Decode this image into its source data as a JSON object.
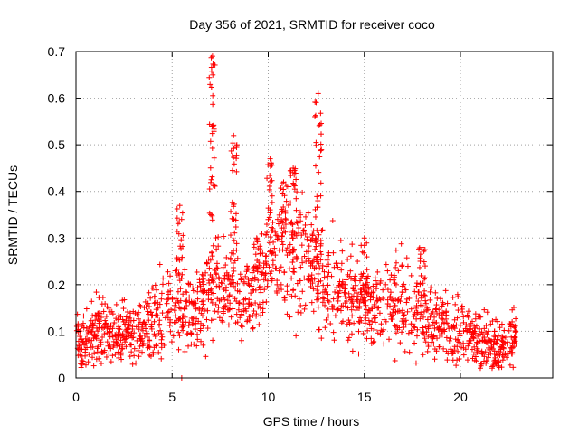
{
  "chart_data": {
    "type": "scatter",
    "title": "Day 356 of 2021, SRMTID for receiver coco",
    "xlabel": "GPS time / hours",
    "ylabel": "SRMTID / TECUs",
    "xlim": [
      0,
      24.8
    ],
    "ylim": [
      0,
      0.7
    ],
    "xticks": [
      0,
      5,
      10,
      15,
      20
    ],
    "yticks": [
      0,
      0.1,
      0.2,
      0.3,
      0.4,
      0.5,
      0.6,
      0.7
    ],
    "xtick_labels": [
      "0",
      "5",
      "10",
      "15",
      "20"
    ],
    "ytick_labels": [
      "0",
      "0.1",
      "0.2",
      "0.3",
      "0.4",
      "0.5",
      "0.6",
      "0.7"
    ],
    "grid": true,
    "marker": "+",
    "color": "#ff0000",
    "x_range_of_data": [
      0,
      22.9
    ],
    "trend": [
      [
        0,
        0.08
      ],
      [
        1,
        0.1
      ],
      [
        2,
        0.09
      ],
      [
        3,
        0.1
      ],
      [
        4,
        0.12
      ],
      [
        5,
        0.16
      ],
      [
        6,
        0.14
      ],
      [
        7,
        0.2
      ],
      [
        8,
        0.18
      ],
      [
        9,
        0.17
      ],
      [
        10,
        0.24
      ],
      [
        11,
        0.26
      ],
      [
        12,
        0.25
      ],
      [
        13,
        0.2
      ],
      [
        14,
        0.18
      ],
      [
        15,
        0.16
      ],
      [
        16,
        0.14
      ],
      [
        17,
        0.17
      ],
      [
        18,
        0.13
      ],
      [
        19,
        0.12
      ],
      [
        20,
        0.1
      ],
      [
        21,
        0.07
      ],
      [
        22,
        0.06
      ],
      [
        22.9,
        0.09
      ]
    ],
    "spikes": [
      {
        "x": 5.4,
        "y": 0.37
      },
      {
        "x": 7.1,
        "y": 0.69
      },
      {
        "x": 8.2,
        "y": 0.52
      },
      {
        "x": 9.4,
        "y": 0.3
      },
      {
        "x": 10.1,
        "y": 0.47
      },
      {
        "x": 10.8,
        "y": 0.42
      },
      {
        "x": 11.3,
        "y": 0.45
      },
      {
        "x": 12.6,
        "y": 0.61
      },
      {
        "x": 15.0,
        "y": 0.3
      },
      {
        "x": 18.0,
        "y": 0.28
      }
    ],
    "zero_points": [
      5.2,
      5.5
    ],
    "n_points": 1600
  }
}
